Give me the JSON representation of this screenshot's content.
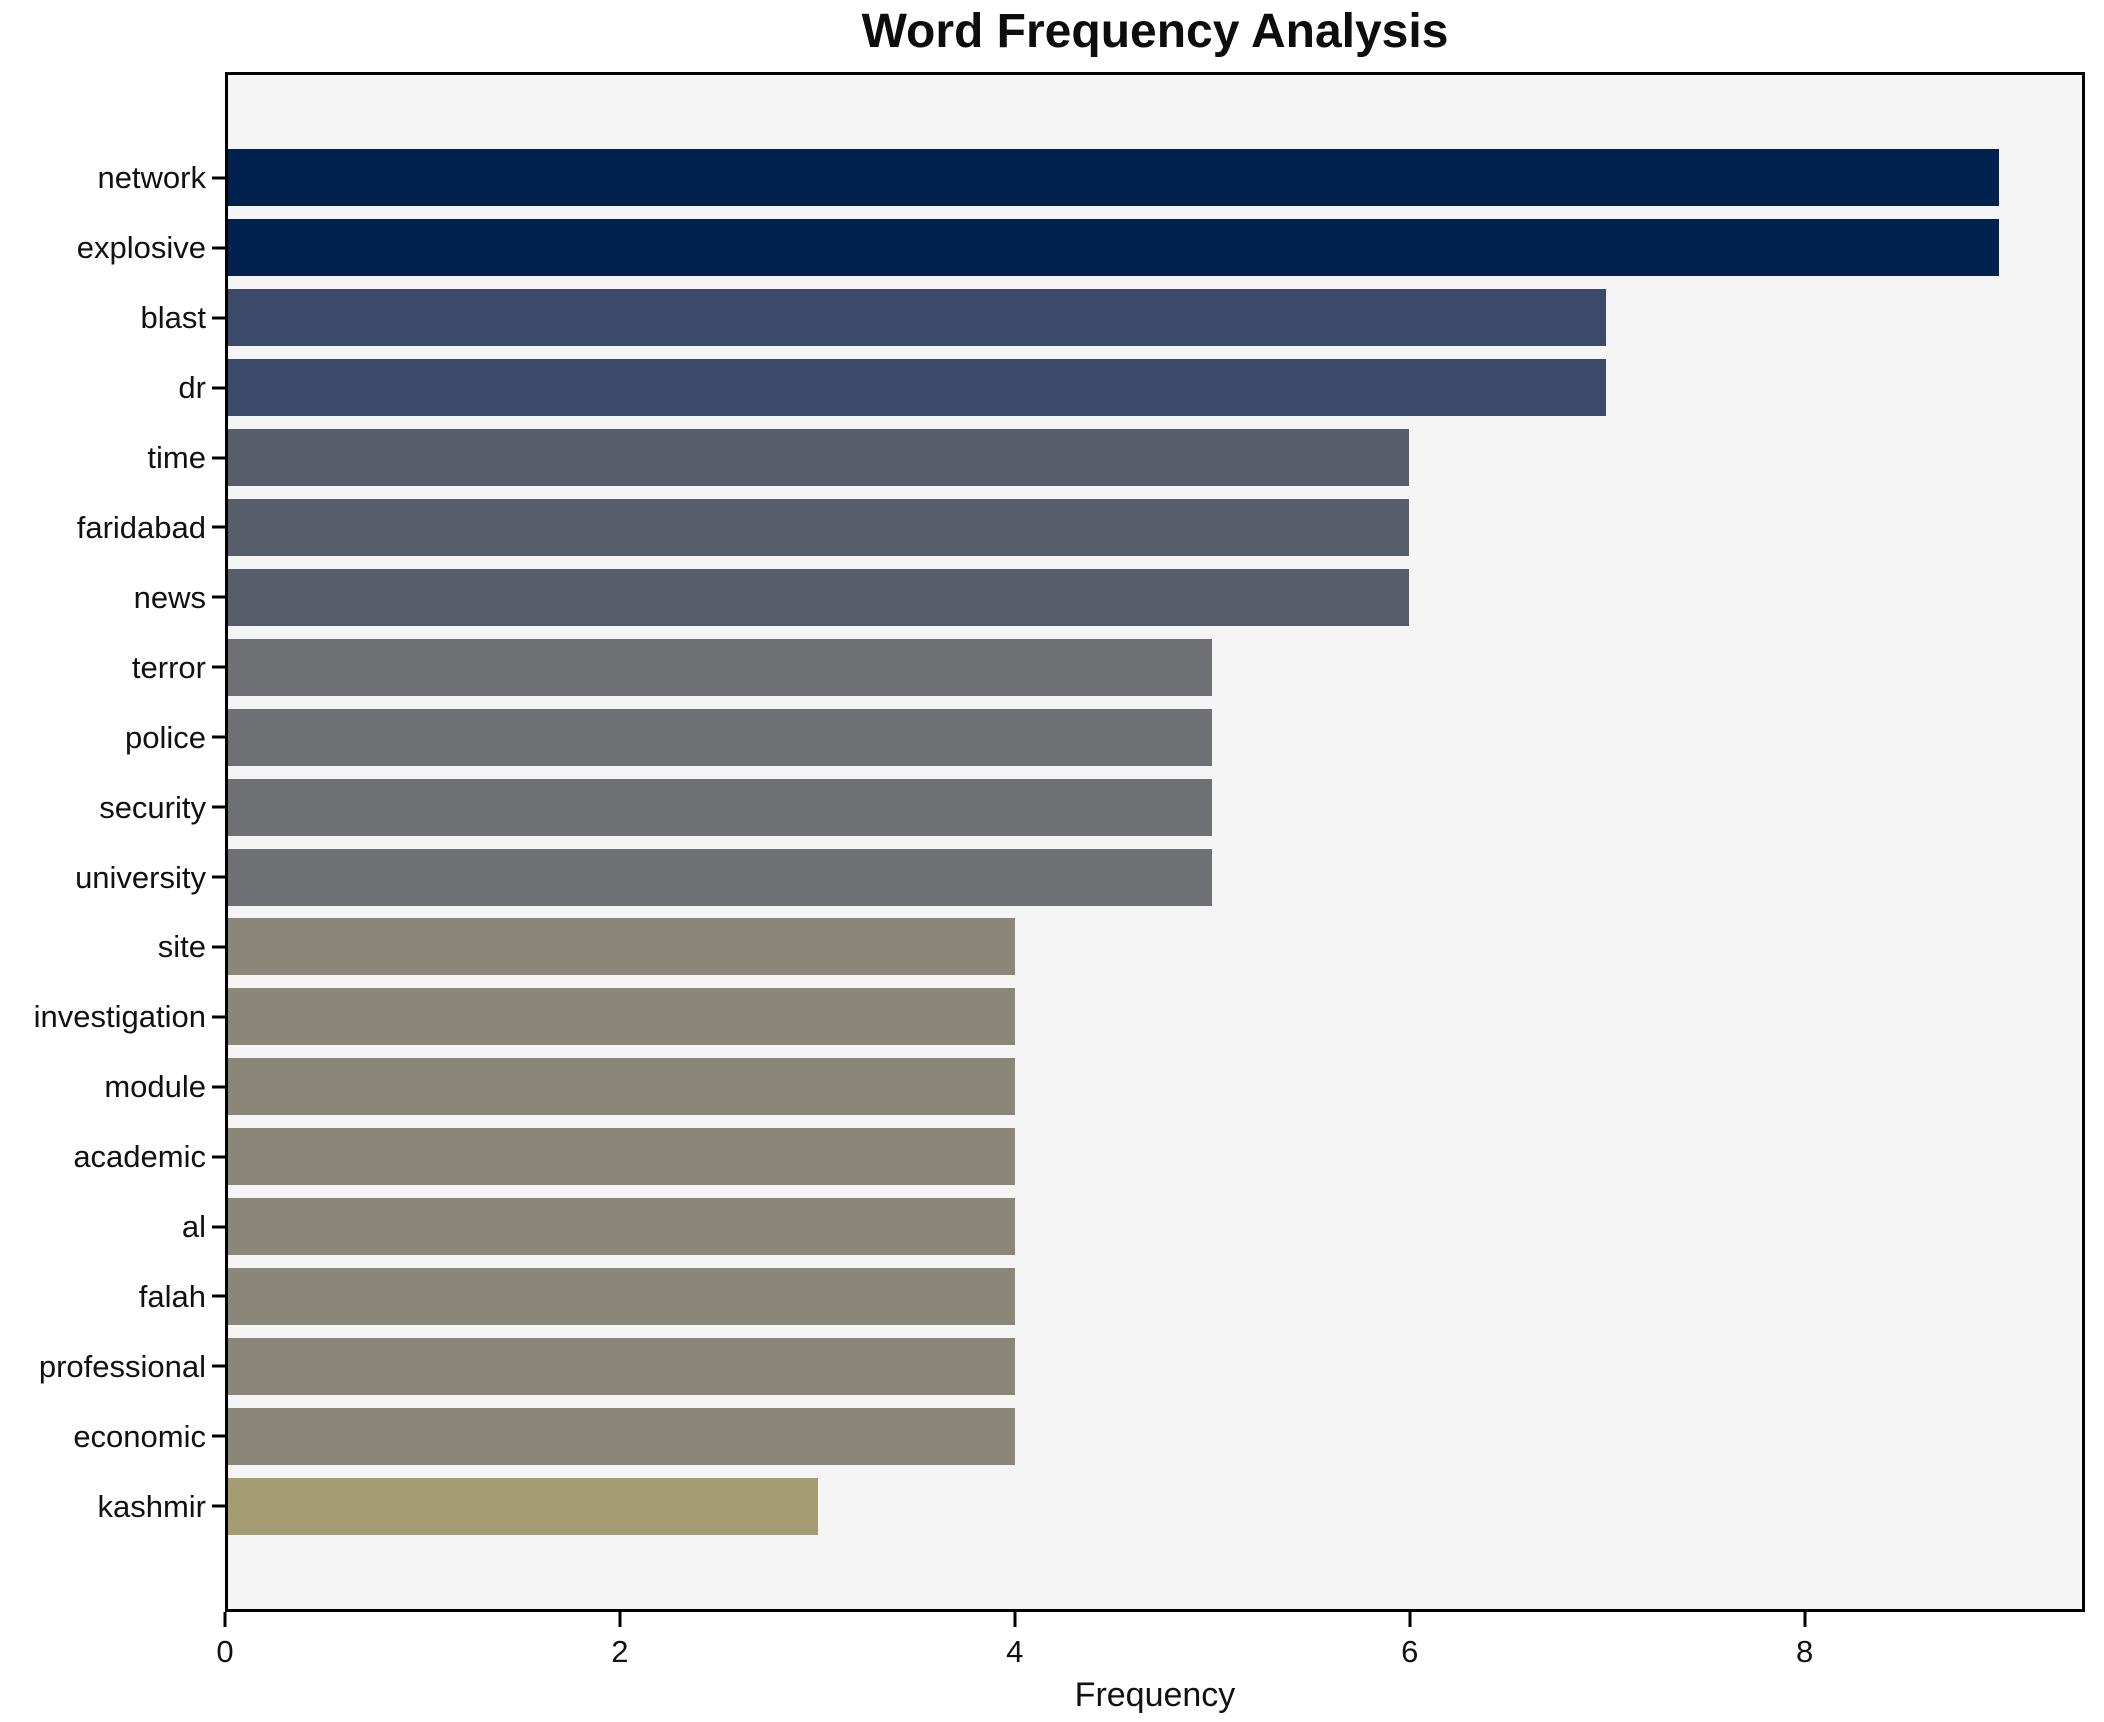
{
  "title": "Word Frequency Analysis",
  "chart_data": {
    "type": "bar",
    "orientation": "horizontal",
    "title": "Word Frequency Analysis",
    "xlabel": "Frequency",
    "ylabel": "",
    "categories": [
      "network",
      "explosive",
      "blast",
      "dr",
      "time",
      "faridabad",
      "news",
      "terror",
      "police",
      "security",
      "university",
      "site",
      "investigation",
      "module",
      "academic",
      "al",
      "falah",
      "professional",
      "economic",
      "kashmir"
    ],
    "values": [
      9,
      9,
      7,
      7,
      6,
      6,
      6,
      5,
      5,
      5,
      5,
      4,
      4,
      4,
      4,
      4,
      4,
      4,
      4,
      3
    ],
    "bar_colors": [
      "#01224e",
      "#01224e",
      "#3b4a68",
      "#3b4a68",
      "#575d6b",
      "#575d6b",
      "#575d6b",
      "#6f7073",
      "#6f7073",
      "#6f7073",
      "#6f7073",
      "#8a8779",
      "#8a8779",
      "#8a8779",
      "#8a8779",
      "#8a8779",
      "#8a8779",
      "#8a8779",
      "#8a8779",
      "#a69c72"
    ],
    "x_ticks": [
      0,
      2,
      4,
      6,
      8
    ],
    "xlim": [
      0,
      9.42
    ],
    "grid": false,
    "legend": "none",
    "plot_background": "#f5f5f6",
    "figure_background": "#ffffff",
    "spine_color": "#000000"
  }
}
